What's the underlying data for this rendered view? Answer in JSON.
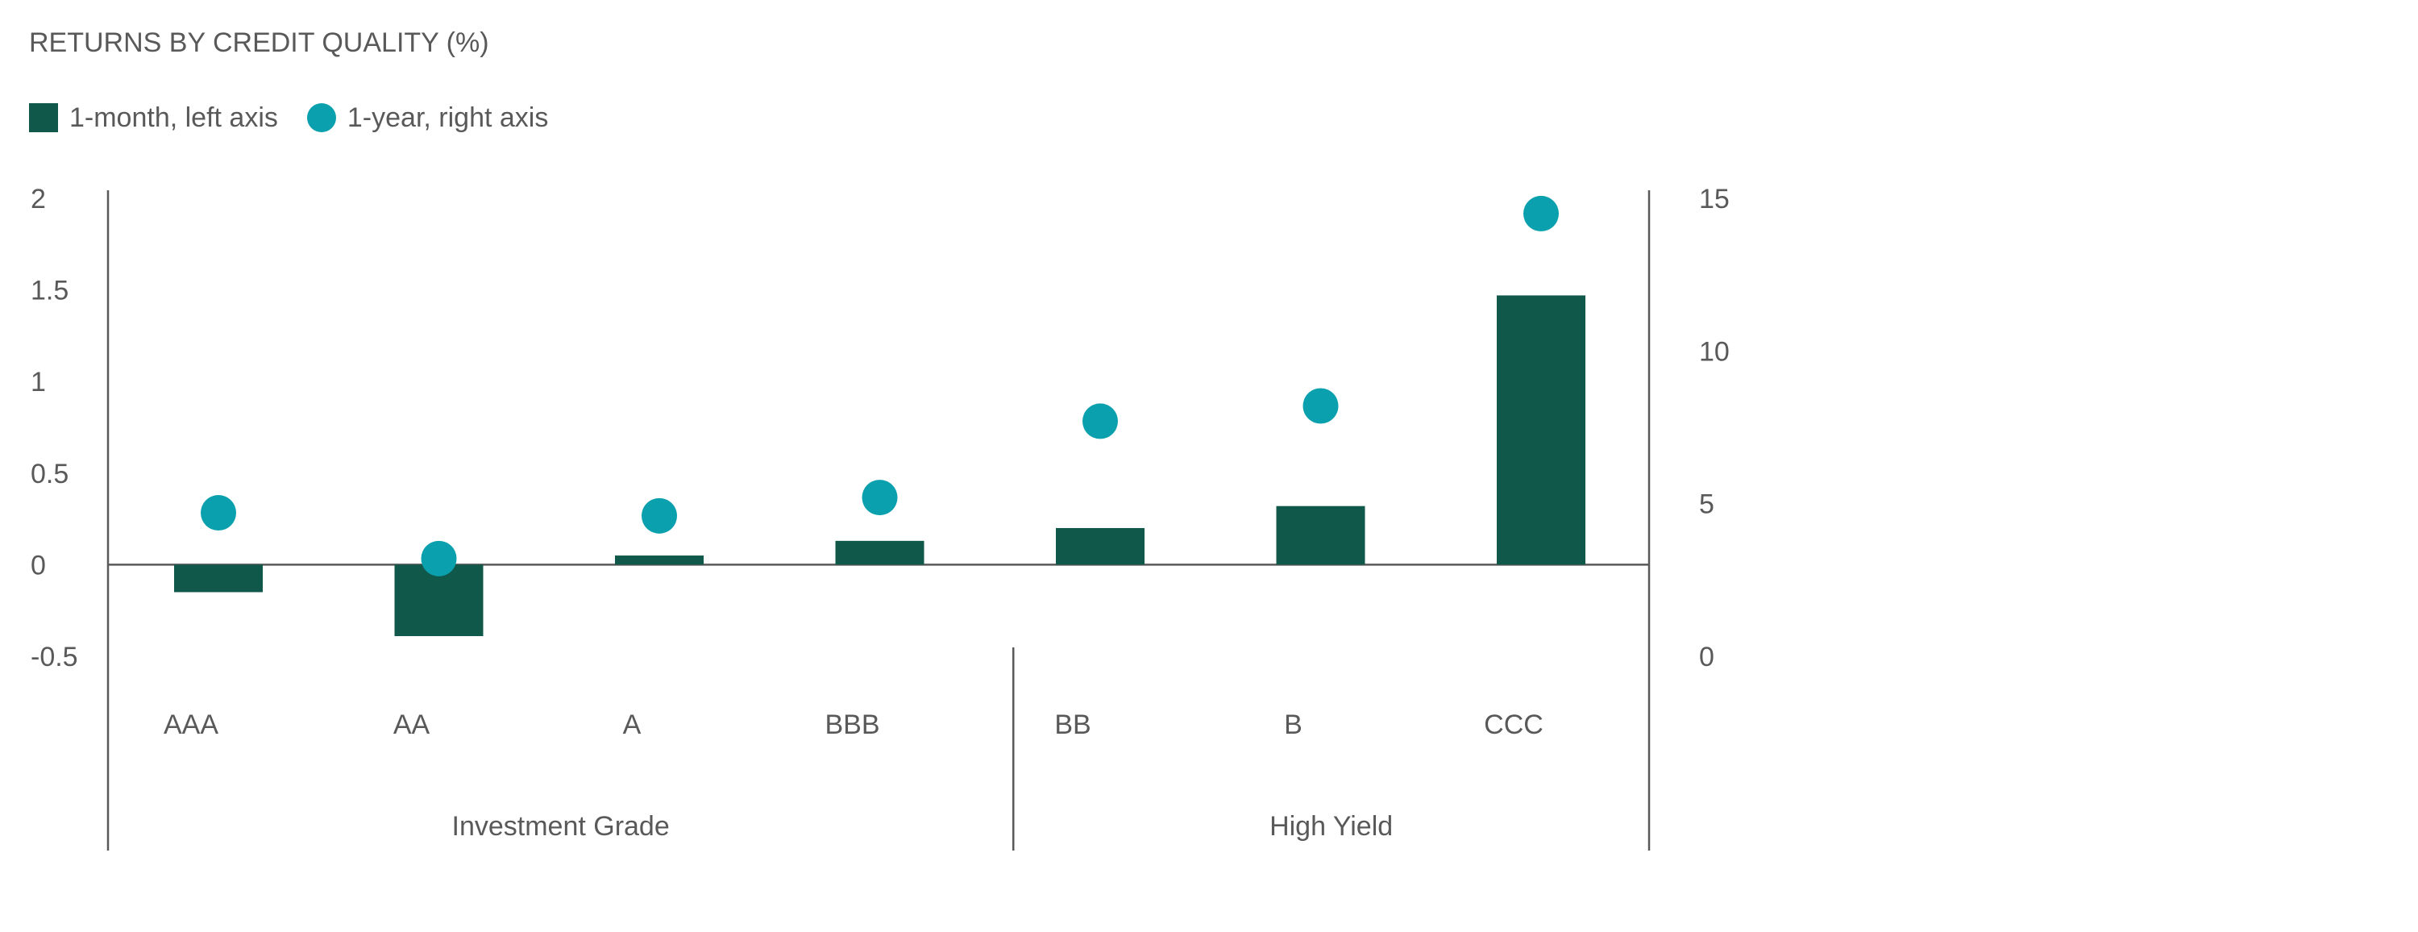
{
  "chart_data": {
    "type": "bar",
    "title": "RETURNS BY CREDIT QUALITY (%)",
    "categories": [
      "AAA",
      "AA",
      "A",
      "BBB",
      "BB",
      "B",
      "CCC"
    ],
    "groups": [
      {
        "label": "Investment Grade",
        "categories": [
          "AAA",
          "AA",
          "A",
          "BBB"
        ]
      },
      {
        "label": "High Yield",
        "categories": [
          "BB",
          "B",
          "CCC"
        ]
      }
    ],
    "series": [
      {
        "name": "1-month, left axis",
        "type": "bar",
        "axis": "left",
        "color": "#10584a",
        "values": [
          -0.15,
          -0.39,
          0.05,
          0.13,
          0.2,
          0.32,
          1.47
        ]
      },
      {
        "name": "1-year, right axis",
        "type": "scatter",
        "axis": "right",
        "color": "#0aa0ad",
        "values": [
          4.7,
          3.2,
          4.6,
          5.2,
          7.7,
          8.2,
          14.5
        ]
      }
    ],
    "y_left": {
      "ylim": [
        -0.5,
        2
      ],
      "ticks": [
        "2",
        "1.5",
        "1",
        "0.5",
        "0",
        "-0.5"
      ],
      "tick_values": [
        2,
        1.5,
        1,
        0.5,
        0,
        -0.5
      ]
    },
    "y_right": {
      "ylim": [
        0,
        15
      ],
      "ticks": [
        "15",
        "10",
        "5",
        "0"
      ],
      "tick_values": [
        15,
        10,
        5,
        0
      ]
    },
    "legend_position": "top-left",
    "grid": false
  }
}
